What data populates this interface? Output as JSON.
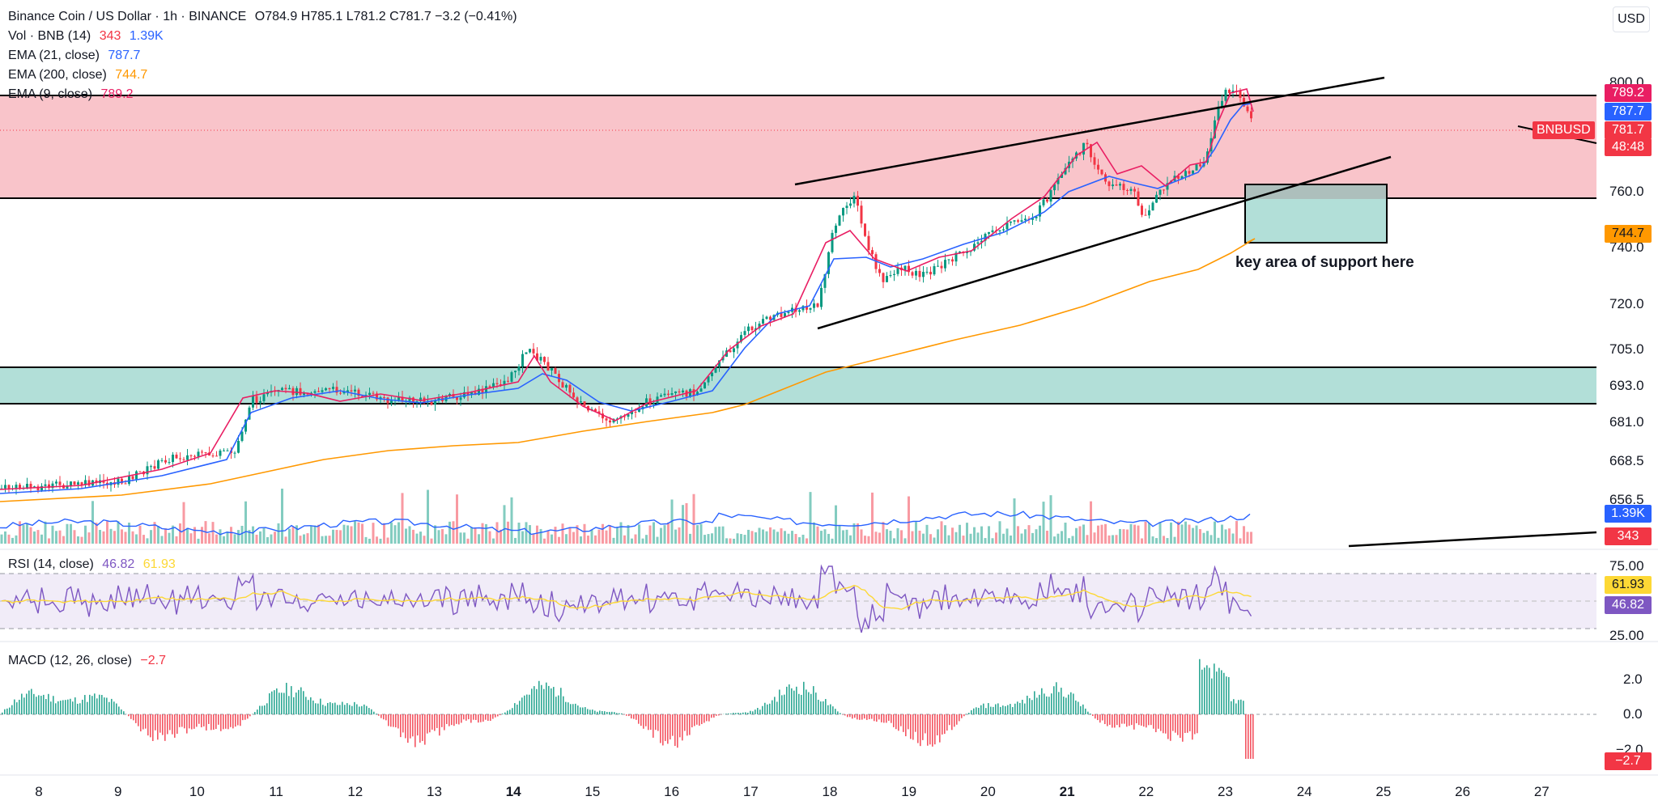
{
  "header": {
    "title": "Binance Coin / US Dollar · 1h · BINANCE",
    "ohlc": "O784.9  H785.1  L781.2  C781.7  −3.2 (−0.41%)",
    "currency_button": "USD"
  },
  "indicators": [
    {
      "label": "Vol · BNB (14)",
      "v1": "343",
      "v2": "1.39K",
      "c1": "#f23645",
      "c2": "#2962ff"
    },
    {
      "label": "EMA (21, close)",
      "v1": "787.7",
      "c1": "#2962ff"
    },
    {
      "label": "EMA (200, close)",
      "v1": "744.7",
      "c1": "#ff9800"
    },
    {
      "label": "EMA (9, close)",
      "v1": "789.2",
      "c1": "#e91e63"
    }
  ],
  "price_axis": [
    "800.0",
    "760.0",
    "740.0",
    "720.0",
    "705.0",
    "693.0",
    "681.0",
    "668.5",
    "656.5"
  ],
  "price_tags": {
    "ema9": "789.2",
    "ema21": "787.7",
    "symbol": "BNBUSD",
    "last": "781.7",
    "countdown": "48:48",
    "ema200": "744.7",
    "vol_ma": "1.39K",
    "vol": "343"
  },
  "annotation": "key area of support here",
  "rsi": {
    "label": "RSI (14, close)",
    "v1": "46.82",
    "v2": "61.93",
    "axis": [
      "75.00",
      "25.00"
    ],
    "tags": [
      "61.93",
      "46.82"
    ]
  },
  "macd": {
    "label": "MACD (12, 26, close)",
    "v1": "−2.7",
    "axis": [
      "2.0",
      "0.0",
      "−2.0"
    ],
    "tag": "−2.7"
  },
  "time_axis": [
    "8",
    "9",
    "10",
    "11",
    "12",
    "13",
    "14",
    "15",
    "16",
    "17",
    "18",
    "19",
    "20",
    "21",
    "22",
    "23",
    "24",
    "25",
    "26",
    "27"
  ],
  "time_axis_bold": [
    "14",
    "21"
  ],
  "colors": {
    "up": "#089981",
    "down": "#f23645",
    "resistance_zone": "#f8bac1",
    "support_zone": "#b2dfd8",
    "ema9": "#e91e63",
    "ema21": "#2962ff",
    "ema200": "#ff9800",
    "rsi": "#7e57c2",
    "rsi_ma": "#fdd835"
  }
}
